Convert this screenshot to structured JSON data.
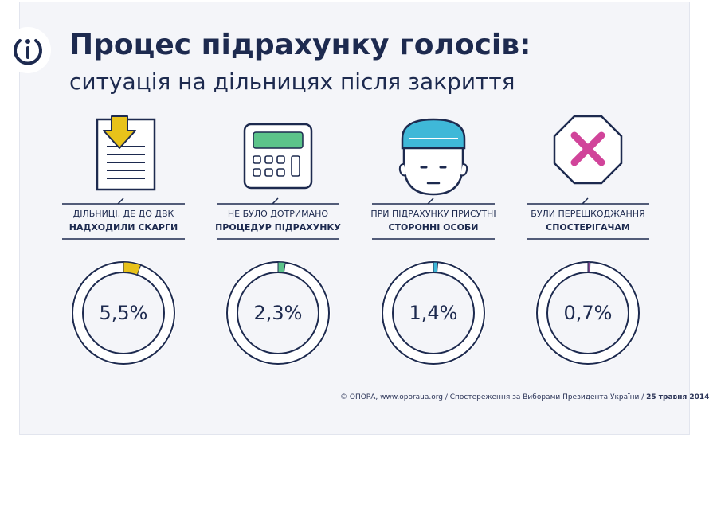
{
  "header": {
    "title": "Процес підрахунку голосів:",
    "subtitle": "ситуація на дільницях після закриття"
  },
  "colors": {
    "navy": "#1d2a4f",
    "ring": "#1d2a4f",
    "yellow": "#e8c21a",
    "green": "#5cc48a",
    "cyan": "#3fb8d8",
    "purple": "#8a4b93",
    "magenta": "#d1449a"
  },
  "items": [
    {
      "line1": "ДІЛЬНИЦІ, ДЕ ДО ДВК",
      "line2": "НАДХОДИЛИ СКАРГИ",
      "value_label": "5,5%",
      "icon": "document-download-icon",
      "color": "#e8c21a"
    },
    {
      "line1": "НЕ БУЛО ДОТРИМАНО",
      "line2": "ПРОЦЕДУР ПІДРАХУНКУ",
      "value_label": "2,3%",
      "icon": "calculator-icon",
      "color": "#5cc48a"
    },
    {
      "line1": "ПРИ ПІДРАХУНКУ ПРИСУТНІ",
      "line2": "СТОРОННІ ОСОБИ",
      "value_label": "1,4%",
      "icon": "person-beanie-icon",
      "color": "#3fb8d8"
    },
    {
      "line1": "БУЛИ ПЕРЕШКОДЖАННЯ",
      "line2": "СПОСТЕРІГАЧАМ",
      "value_label": "0,7%",
      "icon": "stop-x-icon",
      "color": "#8a4b93"
    }
  ],
  "chart_data": {
    "type": "pie",
    "categories": [
      "ДІЛЬНИЦІ, ДЕ ДО ДВК НАДХОДИЛИ СКАРГИ",
      "НЕ БУЛО ДОТРИМАНО ПРОЦЕДУР ПІДРАХУНКУ",
      "ПРИ ПІДРАХУНКУ ПРИСУТНІ СТОРОННІ ОСОБИ",
      "БУЛИ ПЕРЕШКОДЖАННЯ СПОСТЕРІГАЧАМ"
    ],
    "values": [
      5.5,
      2.3,
      1.4,
      0.7
    ],
    "unit": "%"
  },
  "footer": {
    "source": "© ОПОРА, www.oporaua.org / Спостереження за Виборами Президента України /",
    "date": "25 травня 2014"
  }
}
